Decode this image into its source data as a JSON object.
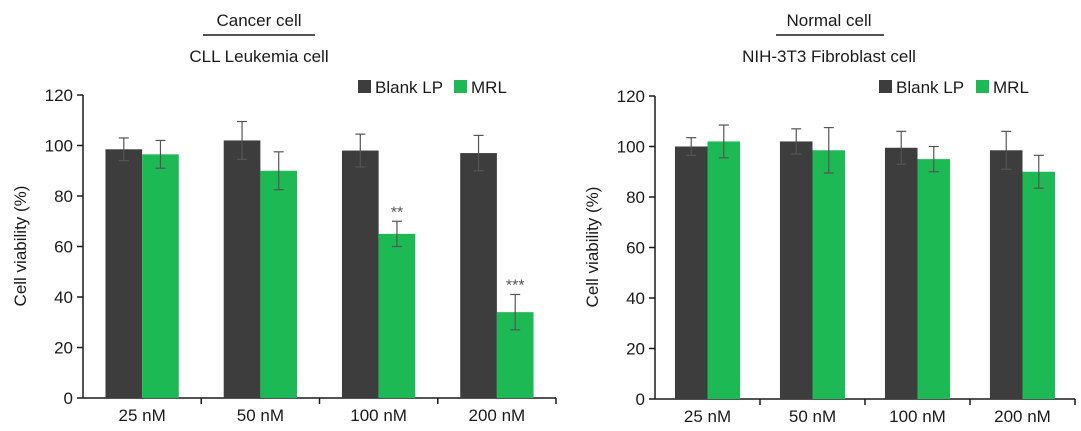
{
  "colors": {
    "blank": "#3d3d3d",
    "mrl": "#1db954",
    "axis": "#1a1a1a",
    "error": "#555555"
  },
  "chart_data": [
    {
      "type": "bar",
      "group_title": "Cancer cell",
      "title": "CLL Leukemia cell",
      "ylabel": "Cell viability (%)",
      "xlabel": "",
      "ylim": [
        0,
        120
      ],
      "yticks": [
        0,
        20,
        40,
        60,
        80,
        100,
        120
      ],
      "categories": [
        "25 nM",
        "50 nM",
        "100 nM",
        "200 nM"
      ],
      "legend_position": "top-right",
      "grid": false,
      "series": [
        {
          "name": "Blank LP",
          "values": [
            98.5,
            102,
            98,
            97
          ],
          "errors": [
            4.5,
            7.5,
            6.5,
            7
          ]
        },
        {
          "name": "MRL",
          "values": [
            96.5,
            90,
            65,
            34
          ],
          "errors": [
            5.5,
            7.5,
            5,
            7
          ]
        }
      ],
      "annotations": [
        {
          "category": "100 nM",
          "series": "MRL",
          "text": "**"
        },
        {
          "category": "200 nM",
          "series": "MRL",
          "text": "***"
        }
      ]
    },
    {
      "type": "bar",
      "group_title": "Normal cell",
      "title": "NIH-3T3 Fibroblast cell",
      "ylabel": "Cell viability (%)",
      "xlabel": "",
      "ylim": [
        0,
        120
      ],
      "yticks": [
        0,
        20,
        40,
        60,
        80,
        100,
        120
      ],
      "categories": [
        "25 nM",
        "50 nM",
        "100 nM",
        "200 nM"
      ],
      "legend_position": "top-right",
      "grid": false,
      "series": [
        {
          "name": "Blank LP",
          "values": [
            100,
            102,
            99.5,
            98.5
          ],
          "errors": [
            3.5,
            5,
            6.5,
            7.5
          ]
        },
        {
          "name": "MRL",
          "values": [
            102,
            98.5,
            95,
            90
          ],
          "errors": [
            6.5,
            9,
            5,
            6.5
          ]
        }
      ],
      "annotations": []
    }
  ]
}
